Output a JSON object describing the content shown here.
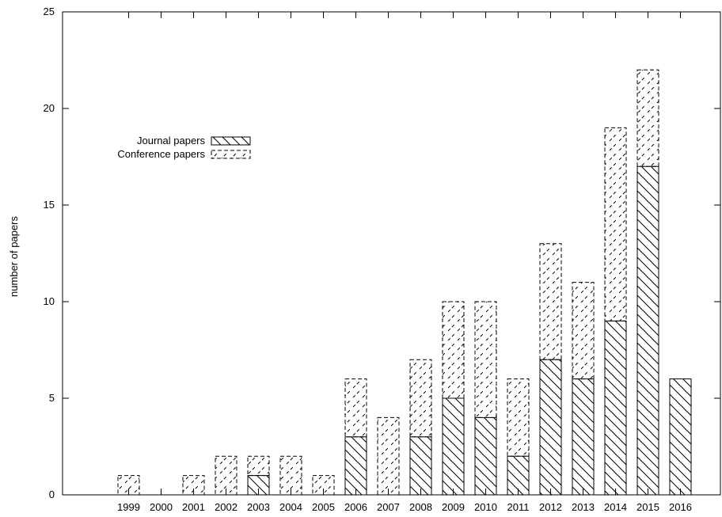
{
  "chart_data": {
    "type": "bar",
    "stacked": true,
    "title": "",
    "xlabel": "",
    "ylabel": "number of papers",
    "ylim": [
      0,
      25
    ],
    "yticks": [
      0,
      5,
      10,
      15,
      20,
      25
    ],
    "grid": false,
    "legend_position": "top-left",
    "categories": [
      "1999",
      "2000",
      "2001",
      "2002",
      "2003",
      "2004",
      "2005",
      "2006",
      "2007",
      "2008",
      "2009",
      "2010",
      "2011",
      "2012",
      "2013",
      "2014",
      "2015",
      "2016"
    ],
    "series": [
      {
        "name": "Journal papers",
        "pattern": "hatch-backslash-solid",
        "values": [
          0,
          0,
          0,
          0,
          1,
          0,
          0,
          3,
          0,
          3,
          5,
          4,
          2,
          7,
          6,
          9,
          17,
          6
        ]
      },
      {
        "name": "Conference papers",
        "pattern": "hatch-slash-dashed",
        "values": [
          1,
          0,
          1,
          2,
          1,
          2,
          1,
          3,
          4,
          4,
          5,
          6,
          4,
          6,
          5,
          10,
          5,
          0
        ]
      }
    ],
    "colors": {
      "stroke": "#000000",
      "background": "#ffffff"
    }
  }
}
